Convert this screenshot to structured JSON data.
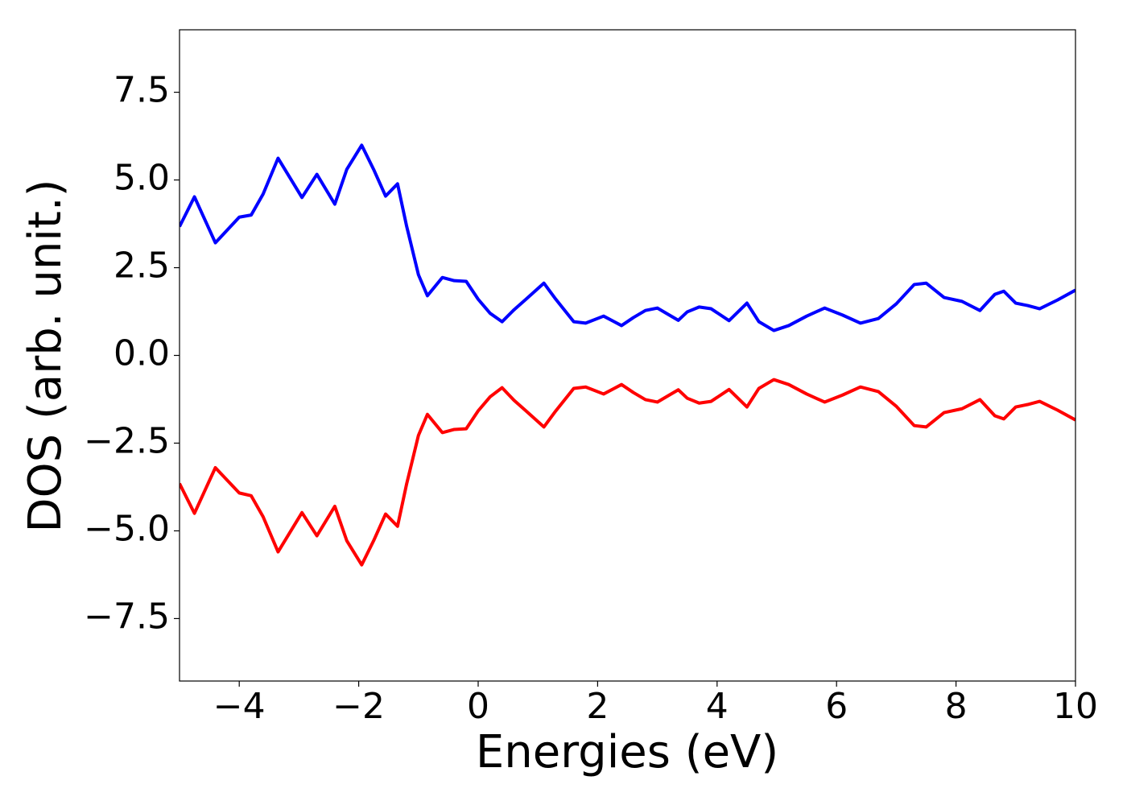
{
  "chart_data": {
    "type": "line",
    "xlabel": "Energies (eV)",
    "ylabel": "DOS (arb. unit.)",
    "x": [
      -5,
      -4.75,
      -4.4,
      -4.0,
      -3.8,
      -3.6,
      -3.35,
      -2.95,
      -2.7,
      -2.4,
      -2.2,
      -1.95,
      -1.75,
      -1.55,
      -1.35,
      -1.2,
      -1.0,
      -0.85,
      -0.6,
      -0.4,
      -0.2,
      0.0,
      0.2,
      0.4,
      0.6,
      0.8,
      1.1,
      1.3,
      1.6,
      1.8,
      2.1,
      2.4,
      2.6,
      2.8,
      3.0,
      3.2,
      3.35,
      3.5,
      3.7,
      3.9,
      4.2,
      4.5,
      4.7,
      4.95,
      5.2,
      5.5,
      5.8,
      6.1,
      6.4,
      6.7,
      7.0,
      7.3,
      7.5,
      7.8,
      8.1,
      8.4,
      8.65,
      8.8,
      9.0,
      9.2,
      9.4,
      9.7,
      10
    ],
    "series": [
      {
        "color": "#0000ff",
        "values": [
          3.67,
          4.52,
          3.21,
          3.94,
          4.0,
          4.6,
          5.62,
          4.5,
          5.16,
          4.31,
          5.3,
          5.99,
          5.3,
          4.54,
          4.89,
          3.7,
          2.3,
          1.7,
          2.22,
          2.13,
          2.11,
          1.6,
          1.2,
          0.96,
          1.3,
          1.6,
          2.06,
          1.6,
          0.96,
          0.92,
          1.12,
          0.85,
          1.08,
          1.28,
          1.35,
          1.15,
          1.0,
          1.24,
          1.38,
          1.33,
          0.99,
          1.49,
          0.96,
          0.71,
          0.85,
          1.12,
          1.35,
          1.15,
          0.92,
          1.05,
          1.47,
          2.02,
          2.06,
          1.65,
          1.54,
          1.28,
          1.74,
          1.83,
          1.49,
          1.42,
          1.33,
          1.58,
          1.86
        ]
      },
      {
        "color": "#ff0000",
        "values": [
          -3.65,
          -4.5,
          -3.2,
          -3.92,
          -4.0,
          -4.6,
          -5.6,
          -4.48,
          -5.14,
          -4.3,
          -5.28,
          -5.97,
          -5.28,
          -4.52,
          -4.87,
          -3.68,
          -2.28,
          -1.68,
          -2.2,
          -2.11,
          -2.09,
          -1.58,
          -1.18,
          -0.92,
          -1.28,
          -1.58,
          -2.04,
          -1.58,
          -0.94,
          -0.9,
          -1.1,
          -0.83,
          -1.06,
          -1.26,
          -1.33,
          -1.13,
          -0.98,
          -1.22,
          -1.36,
          -1.31,
          -0.97,
          -1.47,
          -0.94,
          -0.69,
          -0.83,
          -1.1,
          -1.33,
          -1.13,
          -0.9,
          -1.03,
          -1.45,
          -2.0,
          -2.04,
          -1.63,
          -1.52,
          -1.26,
          -1.72,
          -1.81,
          -1.47,
          -1.4,
          -1.31,
          -1.56,
          -1.84
        ]
      }
    ],
    "xlim": [
      -5,
      10
    ],
    "ylim": [
      -9.28,
      9.28
    ],
    "xticks": [
      {
        "value": -4,
        "label": "−4"
      },
      {
        "value": -2,
        "label": "−2"
      },
      0,
      2,
      4,
      6,
      8,
      10
    ],
    "yticks": [
      {
        "value": -7.5,
        "label": "−7.5"
      },
      {
        "value": -5,
        "label": "−5.0"
      },
      {
        "value": -2.5,
        "label": "−2.5"
      },
      {
        "value": 0,
        "label": "0.0"
      },
      2.5,
      {
        "value": 5,
        "label": "5.0"
      },
      7.5
    ]
  }
}
